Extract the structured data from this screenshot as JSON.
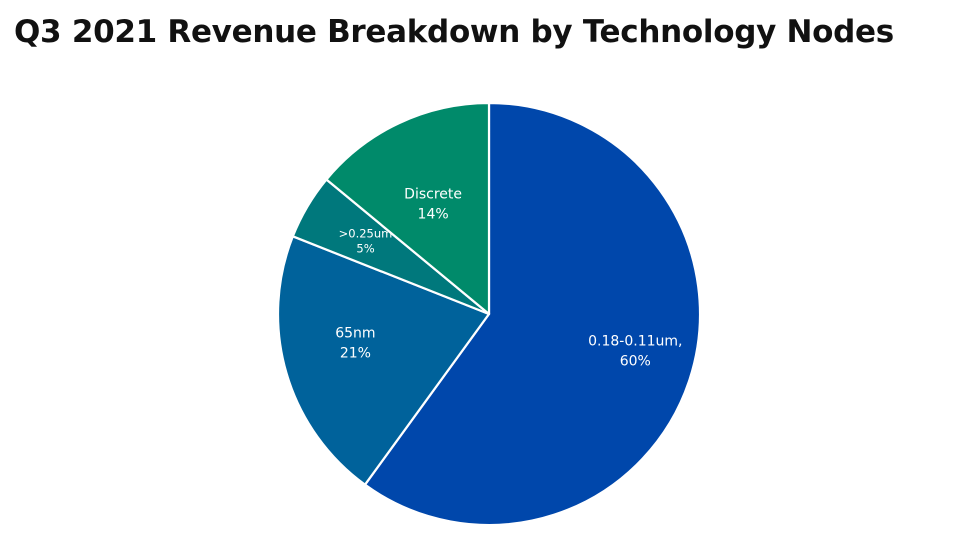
{
  "chart_data": {
    "type": "pie",
    "title": "Q3 2021 Revenue Breakdown by Technology Nodes",
    "start_angle_deg": 0,
    "direction": "clockwise",
    "slices": [
      {
        "name": "0.18-0.11um,",
        "value_label": "60%",
        "value": 60,
        "color": "#0047AB"
      },
      {
        "name": "65nm",
        "value_label": "21%",
        "value": 21,
        "color": "#00629B"
      },
      {
        "name": ">0.25um",
        "value_label": "5%",
        "value": 5,
        "color": "#00787C"
      },
      {
        "name": "Discrete",
        "value_label": "14%",
        "value": 14,
        "color": "#008A6A"
      }
    ]
  }
}
